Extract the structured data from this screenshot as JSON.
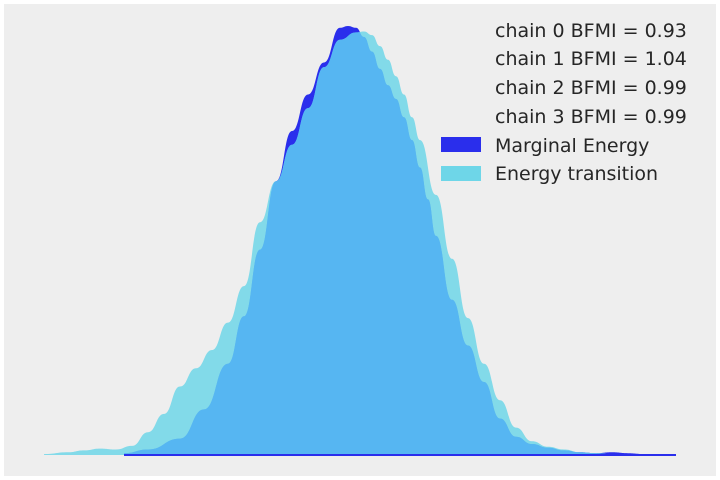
{
  "chart_data": {
    "type": "area",
    "title": "",
    "xlabel": "",
    "ylabel": "",
    "xlim": [
      -4.6,
      3.5
    ],
    "ylim": [
      0,
      0.47
    ],
    "grid": false,
    "legend_position": "top-right",
    "annotations": [
      "chain  0 BFMI = 0.93",
      "chain  1 BFMI = 1.04",
      "chain  2 BFMI = 0.99",
      "chain  3 BFMI = 0.99"
    ],
    "series": [
      {
        "name": "Marginal Energy",
        "color": "#2a2eec",
        "x": [
          -3.5,
          -3.2,
          -2.8,
          -2.5,
          -2.2,
          -2.0,
          -1.8,
          -1.6,
          -1.4,
          -1.2,
          -1.0,
          -0.8,
          -0.7,
          -0.6,
          -0.5,
          -0.4,
          -0.3,
          -0.2,
          -0.1,
          0.0,
          0.1,
          0.2,
          0.3,
          0.4,
          0.6,
          0.8,
          1.0,
          1.2,
          1.4,
          1.6,
          1.8,
          2.0,
          2.2,
          2.4,
          2.6,
          2.8,
          3.0,
          3.2,
          3.4
        ],
        "y": [
          0.002,
          0.006,
          0.018,
          0.05,
          0.1,
          0.152,
          0.225,
          0.3,
          0.355,
          0.395,
          0.43,
          0.468,
          0.47,
          0.468,
          0.458,
          0.442,
          0.423,
          0.405,
          0.39,
          0.37,
          0.345,
          0.315,
          0.28,
          0.24,
          0.17,
          0.12,
          0.08,
          0.04,
          0.02,
          0.012,
          0.008,
          0.005,
          0.003,
          0.002,
          0.003,
          0.002,
          0.001,
          0.001,
          0.0
        ]
      },
      {
        "name": "Energy transition",
        "color": "#6ed6e8",
        "x": [
          -4.5,
          -4.2,
          -4.0,
          -3.8,
          -3.6,
          -3.4,
          -3.2,
          -3.0,
          -2.8,
          -2.6,
          -2.4,
          -2.2,
          -2.0,
          -1.8,
          -1.6,
          -1.4,
          -1.2,
          -1.0,
          -0.8,
          -0.6,
          -0.5,
          -0.4,
          -0.3,
          -0.2,
          -0.1,
          0.0,
          0.1,
          0.2,
          0.4,
          0.6,
          0.8,
          1.0,
          1.2,
          1.4,
          1.6,
          1.8,
          2.0,
          2.2,
          2.4,
          2.6,
          2.8,
          3.0
        ],
        "y": [
          0.001,
          0.003,
          0.005,
          0.007,
          0.006,
          0.01,
          0.025,
          0.045,
          0.075,
          0.095,
          0.115,
          0.145,
          0.185,
          0.255,
          0.3,
          0.34,
          0.38,
          0.425,
          0.455,
          0.463,
          0.464,
          0.46,
          0.448,
          0.433,
          0.415,
          0.395,
          0.37,
          0.345,
          0.285,
          0.215,
          0.15,
          0.1,
          0.06,
          0.03,
          0.015,
          0.009,
          0.006,
          0.003,
          0.002,
          0.001,
          0.0005,
          0.0
        ]
      }
    ]
  },
  "background_color": "#eeeeee",
  "overlap_color": "#56b6f2"
}
